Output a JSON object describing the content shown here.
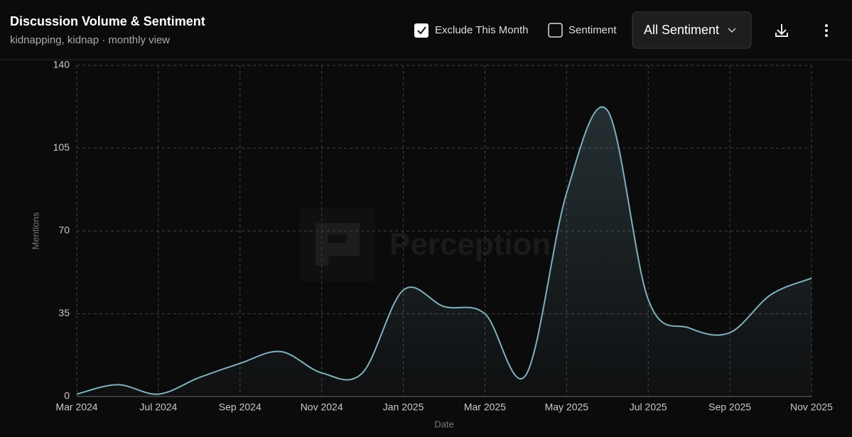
{
  "header": {
    "title": "Discussion Volume & Sentiment",
    "subtitle": "kidnapping, kidnap · monthly view",
    "controls": {
      "exclude_label": "Exclude This Month",
      "exclude_checked": true,
      "sentiment_label": "Sentiment",
      "sentiment_checked": false,
      "dropdown": "All Sentiment"
    }
  },
  "watermark": "Perception",
  "chart_data": {
    "type": "area",
    "x_label": "Date",
    "y_label": "Mentions",
    "categories": [
      "Mar 2024",
      null,
      "Jul 2024",
      null,
      "Sep 2024",
      null,
      "Nov 2024",
      null,
      "Jan 2025",
      null,
      "Mar 2025",
      null,
      "May 2025",
      null,
      "Jul 2025",
      null,
      "Sep 2025",
      null,
      "Nov 2025"
    ],
    "series": [
      {
        "name": "Mentions",
        "color": "#7fb0bd",
        "values": [
          1,
          5,
          1,
          8,
          14,
          19,
          10,
          10,
          45,
          38,
          35,
          9,
          86,
          121,
          41,
          29,
          27,
          43,
          50
        ]
      }
    ],
    "ylim": [
      0,
      140
    ],
    "yticks": [
      0,
      35,
      70,
      105,
      140
    ],
    "grid": true
  }
}
